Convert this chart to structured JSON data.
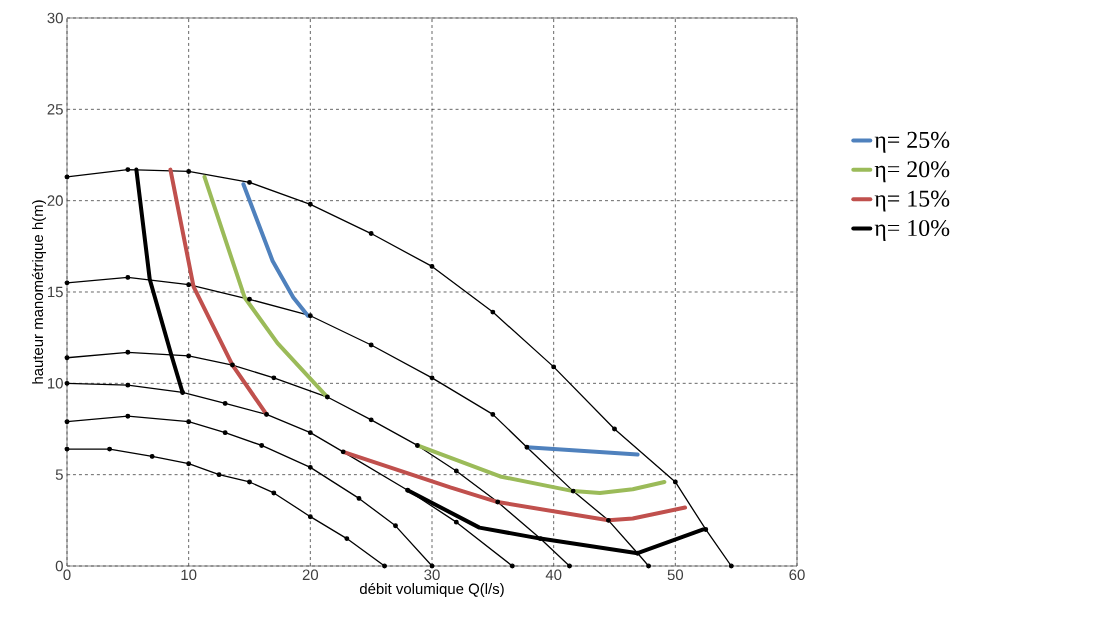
{
  "chart_data": {
    "type": "line",
    "xlabel": "débit volumique  Q(l/s)",
    "ylabel": "hauteur manométrique h(m)",
    "xlim": [
      0,
      60
    ],
    "ylim": [
      0,
      30
    ],
    "xticks": [
      0,
      10,
      20,
      30,
      40,
      50,
      60
    ],
    "yticks": [
      0,
      5,
      10,
      15,
      20,
      25,
      30
    ],
    "grid": true,
    "legend": "right",
    "line_style": "solid",
    "series": [
      {
        "color": "#000000",
        "marker": "circle",
        "x": [
          0,
          5,
          10,
          15,
          20,
          25,
          30,
          35,
          40,
          45,
          50,
          52.5,
          54.6
        ],
        "values": [
          21.3,
          21.7,
          21.6,
          21.0,
          19.8,
          18.2,
          16.4,
          13.9,
          10.9,
          7.5,
          4.6,
          2.0,
          0
        ]
      },
      {
        "color": "#000000",
        "marker": "circle",
        "x": [
          0,
          5,
          10,
          15,
          20,
          25,
          30,
          35,
          37.8,
          41.6,
          44.5,
          46.9,
          47.8
        ],
        "values": [
          15.5,
          15.8,
          15.4,
          14.6,
          13.7,
          12.1,
          10.3,
          8.3,
          6.5,
          4.1,
          2.5,
          0.7,
          0
        ]
      },
      {
        "color": "#000000",
        "marker": "circle",
        "x": [
          0,
          5,
          10,
          13.6,
          17,
          21.4,
          25,
          28.8,
          32,
          35.4,
          38.9,
          41.3
        ],
        "values": [
          11.4,
          11.7,
          11.5,
          11.0,
          10.3,
          9.25,
          8.0,
          6.6,
          5.2,
          3.5,
          1.5,
          0
        ]
      },
      {
        "color": "#000000",
        "marker": "circle",
        "x": [
          0,
          5,
          9.5,
          13,
          16.4,
          20,
          22.7,
          28,
          32,
          36.6
        ],
        "values": [
          10.0,
          9.9,
          9.5,
          8.9,
          8.3,
          7.3,
          6.25,
          4.15,
          2.4,
          0
        ]
      },
      {
        "color": "#000000",
        "marker": "circle",
        "x": [
          0,
          5,
          10,
          13,
          16,
          20,
          24,
          27,
          30
        ],
        "values": [
          7.9,
          8.2,
          7.9,
          7.3,
          6.6,
          5.4,
          3.7,
          2.2,
          0
        ]
      },
      {
        "color": "#000000",
        "marker": "circle",
        "x": [
          0,
          3.5,
          7,
          10,
          12.5,
          15,
          17,
          20,
          23,
          26.1
        ],
        "values": [
          6.4,
          6.4,
          6.0,
          5.6,
          5.0,
          4.6,
          4.0,
          2.7,
          1.5,
          0
        ]
      },
      {
        "name": "η= 25%",
        "color": "#4f81bd",
        "marker": "none",
        "x": [
          14.5,
          16.9,
          18.6,
          19.8,
          null,
          37.8,
          46.9
        ],
        "values": [
          20.9,
          16.7,
          14.7,
          13.7,
          null,
          6.5,
          6.1
        ]
      },
      {
        "name": "η= 20%",
        "color": "#9bbb59",
        "marker": "none",
        "x": [
          11.3,
          14.6,
          17.3,
          21.4,
          null,
          28.8,
          35.6,
          41.6,
          43.8,
          46.5,
          49.1
        ],
        "values": [
          21.3,
          14.7,
          12.2,
          9.25,
          null,
          6.6,
          4.9,
          4.1,
          4.0,
          4.2,
          4.6
        ]
      },
      {
        "name": "η= 15%",
        "color": "#c0504d",
        "marker": "none",
        "x": [
          8.5,
          10.4,
          13.6,
          16.4,
          null,
          22.7,
          31.5,
          35.4,
          44.5,
          46.5,
          50.8
        ],
        "values": [
          21.7,
          15.3,
          11.0,
          8.3,
          null,
          6.25,
          4.3,
          3.5,
          2.5,
          2.6,
          3.2
        ]
      },
      {
        "name": "η= 10%",
        "color": "#000000",
        "marker": "none",
        "x": [
          5.7,
          6.8,
          8.6,
          9.5,
          null,
          28.0,
          33.9,
          38.9,
          46.9,
          52.3
        ],
        "values": [
          21.7,
          15.7,
          11.5,
          9.5,
          null,
          4.15,
          2.1,
          1.5,
          0.7,
          2.0
        ]
      }
    ]
  }
}
